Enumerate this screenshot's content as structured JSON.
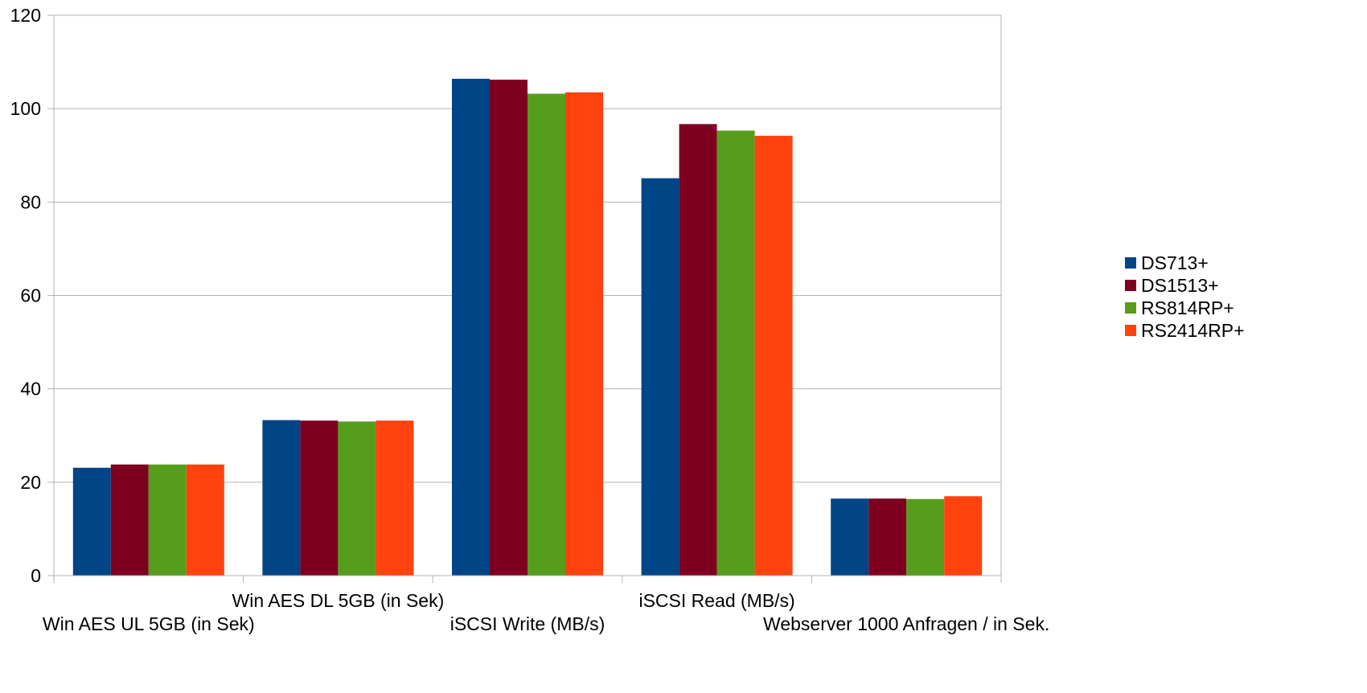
{
  "chart_data": {
    "type": "bar",
    "title": "",
    "xlabel": "",
    "ylabel": "",
    "ylim": [
      0,
      120
    ],
    "yticks": [
      0,
      20,
      40,
      60,
      80,
      100,
      120
    ],
    "grid": true,
    "legend_position": "right",
    "categories": [
      "Win AES UL 5GB (in Sek)",
      "Win AES DL 5GB (in Sek)",
      "iSCSI Write (MB/s)",
      "iSCSI Read (MB/s)",
      "Webserver 1000 Anfragen / in Sek."
    ],
    "series": [
      {
        "name": "DS713+",
        "color": "#004586",
        "values": [
          23.1,
          33.3,
          106.4,
          85.1,
          16.5
        ]
      },
      {
        "name": "DS1513+",
        "color": "#7e0021",
        "values": [
          23.8,
          33.2,
          106.2,
          96.7,
          16.5
        ]
      },
      {
        "name": "RS814RP+",
        "color": "#579d1c",
        "values": [
          23.8,
          33.0,
          103.2,
          95.3,
          16.4
        ]
      },
      {
        "name": "RS2414RP+",
        "color": "#ff420e",
        "values": [
          23.8,
          33.2,
          103.5,
          94.2,
          17.0
        ]
      }
    ]
  }
}
